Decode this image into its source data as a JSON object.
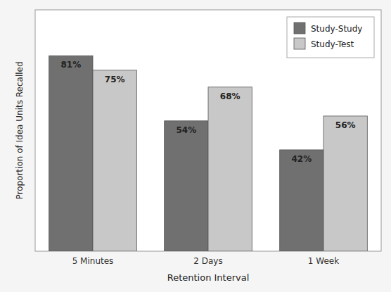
{
  "chart_data": {
    "type": "bar",
    "categories": [
      "5 Minutes",
      "2 Days",
      "1 Week"
    ],
    "series": [
      {
        "name": "Study-Study",
        "color": "#707070",
        "values": [
          81,
          54,
          42
        ],
        "value_labels": [
          "81%",
          "54%",
          "42%"
        ]
      },
      {
        "name": "Study-Test",
        "color": "#c8c8c8",
        "values": [
          75,
          68,
          56
        ],
        "value_labels": [
          "75%",
          "68%",
          "56%"
        ]
      }
    ],
    "xlabel": "Retention Interval",
    "ylabel": "Proportion of Idea Units Recalled",
    "ylim": [
      0,
      100
    ],
    "yticks": [],
    "tick_labels": "x",
    "data_labels": true,
    "legend": "upper right"
  }
}
